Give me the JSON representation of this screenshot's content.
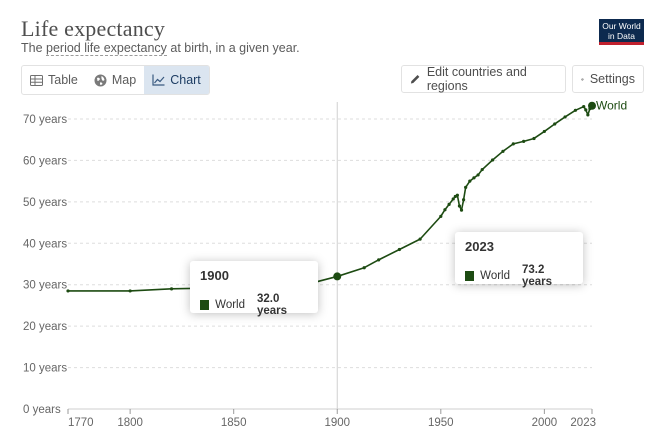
{
  "header": {
    "title": "Life expectancy",
    "subtitle_pre": "The ",
    "subtitle_link": "period life expectancy",
    "subtitle_post": " at birth, in a given year.",
    "logo_line1": "Our World",
    "logo_line2": "in Data"
  },
  "toolbar": {
    "tabs": [
      {
        "label": "Table",
        "icon": "table-icon",
        "active": false
      },
      {
        "label": "Map",
        "icon": "globe-icon",
        "active": false
      },
      {
        "label": "Chart",
        "icon": "line-chart-icon",
        "active": true
      }
    ],
    "edit_label": "Edit countries and regions",
    "settings_label": "Settings"
  },
  "tooltips": [
    {
      "year": "1900",
      "series": "World",
      "value": "32.0 years"
    },
    {
      "year": "2023",
      "series": "World",
      "value": "73.2 years"
    }
  ],
  "colors": {
    "series": "#1d4b12",
    "accent_tab": "#dbe5f0",
    "logo_bg": "#0d2a4f",
    "logo_stripe": "#c0202e"
  },
  "chart_data": {
    "type": "line",
    "title": "Life expectancy",
    "xlabel": "",
    "ylabel": "",
    "xlim": [
      1770,
      2023
    ],
    "ylim": [
      0,
      73
    ],
    "x_ticks": [
      1770,
      1800,
      1850,
      1900,
      1950,
      2000,
      2023
    ],
    "y_ticks": [
      0,
      10,
      20,
      30,
      40,
      50,
      60,
      70
    ],
    "y_tick_suffix": " years",
    "grid": "horizontal-dashed",
    "highlight_x": 1900,
    "series": [
      {
        "name": "World",
        "x": [
          1770,
          1800,
          1820,
          1850,
          1870,
          1880,
          1890,
          1900,
          1913,
          1920,
          1930,
          1940,
          1950,
          1952,
          1954,
          1956,
          1957,
          1958,
          1959,
          1960,
          1961,
          1962,
          1964,
          1966,
          1968,
          1970,
          1975,
          1980,
          1985,
          1990,
          1995,
          2000,
          2005,
          2010,
          2015,
          2019,
          2020,
          2021,
          2022,
          2023
        ],
        "values": [
          28.5,
          28.5,
          29.0,
          29.3,
          29.6,
          30.0,
          30.7,
          32.0,
          34.1,
          36.0,
          38.5,
          41.0,
          46.5,
          48.1,
          49.4,
          50.7,
          51.3,
          51.6,
          49.0,
          48.0,
          50.5,
          53.5,
          55.0,
          55.8,
          56.5,
          57.8,
          60.1,
          62.2,
          64.0,
          64.6,
          65.3,
          67.0,
          68.8,
          70.5,
          72.1,
          73.0,
          72.2,
          71.0,
          72.5,
          73.2
        ]
      }
    ]
  }
}
